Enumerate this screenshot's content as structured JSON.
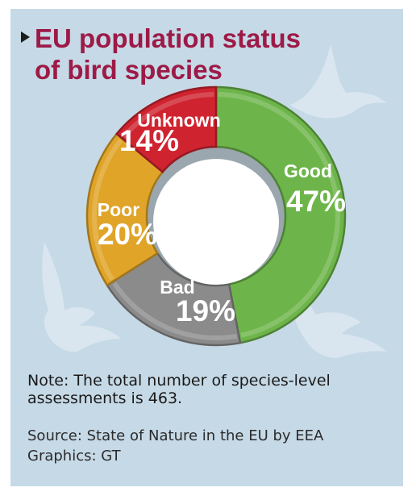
{
  "title_line1": "EU population status",
  "title_line2": "of bird species",
  "chart_data": {
    "type": "pie",
    "style": "donut",
    "categories": [
      "Good",
      "Bad",
      "Poor",
      "Unknown"
    ],
    "values": [
      47,
      19,
      20,
      14
    ],
    "labels": [
      "47%",
      "19%",
      "20%",
      "14%"
    ],
    "colors": [
      "#6db54a",
      "#8b8b8b",
      "#e0a428",
      "#cf2430"
    ]
  },
  "note": "Note: The total number of species-level assessments is 463.",
  "source": "Source: State of Nature in the EU by EEA",
  "graphics_credit": "Graphics: GT"
}
